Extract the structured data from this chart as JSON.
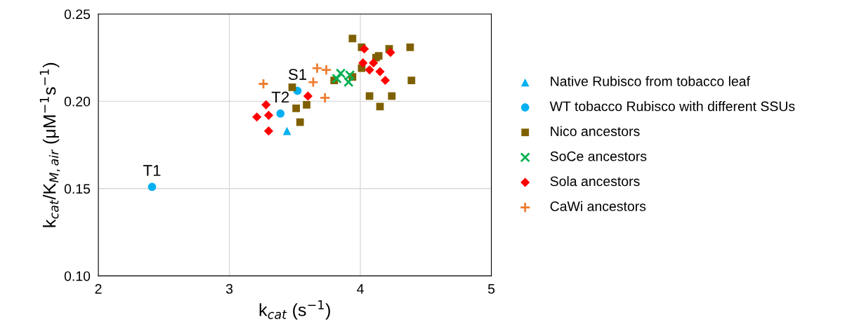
{
  "chart_data": {
    "type": "scatter",
    "xlabel": "k$_{cat}$ (s$^{−1}$)",
    "ylabel": "k$_{cat}$/K$_{M,air}$ (μM$^{−1}$s$^{−1}$)",
    "xlim": [
      2,
      5
    ],
    "xticks": [
      2,
      3,
      4,
      5
    ],
    "ylim": [
      0.1,
      0.25
    ],
    "yticks": [
      {
        "value": 0.1,
        "label": "0.10"
      },
      {
        "value": 0.15,
        "label": "0.15"
      },
      {
        "value": 0.2,
        "label": "0.20"
      },
      {
        "value": 0.25,
        "label": "0.25"
      }
    ],
    "grid": true,
    "legend": "right",
    "series": [
      {
        "name": "Native Rubisco from tobacco leaf",
        "color": "#00b0f0",
        "marker": "triangle",
        "x": [
          3.44
        ],
        "values": [
          0.183
        ]
      },
      {
        "name": "WT tobacco Rubisco with different SSUs",
        "color": "#00b0f0",
        "marker": "circle",
        "x": [
          2.41,
          3.39,
          3.52
        ],
        "values": [
          0.151,
          0.193,
          0.206
        ]
      },
      {
        "name": "Nico ancestors",
        "color": "#7f6000",
        "marker": "square",
        "x": [
          3.48,
          3.51,
          3.59,
          3.54,
          3.94,
          4.01,
          4.22,
          4.38,
          4.14,
          4.12,
          4.01,
          3.94,
          3.8,
          4.39,
          4.07,
          4.24,
          4.15
        ],
        "values": [
          0.208,
          0.196,
          0.198,
          0.188,
          0.236,
          0.231,
          0.23,
          0.231,
          0.226,
          0.225,
          0.219,
          0.214,
          0.212,
          0.212,
          0.203,
          0.203,
          0.197
        ]
      },
      {
        "name": "SoCe ancestors",
        "color": "#00b050",
        "marker": "cross",
        "x": [
          3.85,
          3.82,
          3.92,
          3.91
        ],
        "values": [
          0.216,
          0.213,
          0.215,
          0.211
        ]
      },
      {
        "name": "Sola ancestors",
        "color": "#ff0000",
        "marker": "diamond",
        "x": [
          3.6,
          3.28,
          3.3,
          3.21,
          3.3,
          4.03,
          4.23,
          4.02,
          4.1,
          4.07,
          4.15,
          4.19
        ],
        "values": [
          0.203,
          0.198,
          0.192,
          0.191,
          0.183,
          0.23,
          0.228,
          0.222,
          0.222,
          0.218,
          0.217,
          0.212
        ]
      },
      {
        "name": "CaWi ancestors",
        "color": "#ed7d31",
        "marker": "plus",
        "x": [
          3.26,
          3.67,
          3.74,
          3.64,
          3.73
        ],
        "values": [
          0.21,
          0.219,
          0.218,
          0.211,
          0.202
        ]
      }
    ],
    "annotations": [
      {
        "text": "T1",
        "x": 2.41,
        "y": 0.151
      },
      {
        "text": "T2",
        "x": 3.39,
        "y": 0.193
      },
      {
        "text": "S1",
        "x": 3.52,
        "y": 0.206
      }
    ]
  }
}
